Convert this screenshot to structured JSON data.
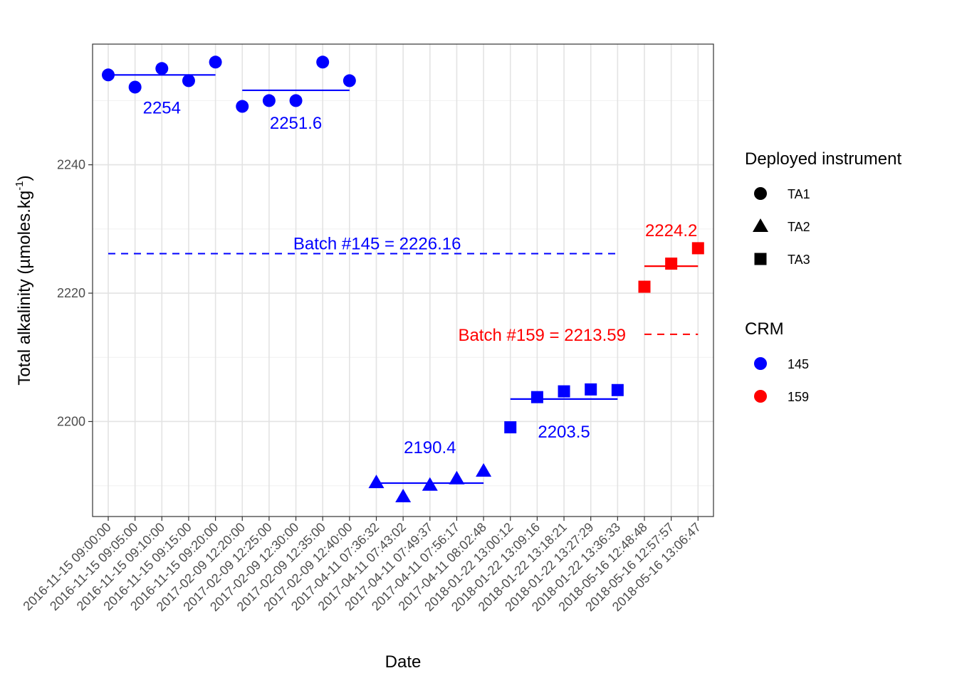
{
  "chart_data": {
    "type": "scatter",
    "xlabel": "Date",
    "ylabel": "Total alkalinity (µmoles.kg",
    "ylabel_superscript": "-1",
    "ylabel_close": ")",
    "ylim": [
      2185.2,
      2258.8
    ],
    "yticks": [
      2200,
      2220,
      2240
    ],
    "grid": true,
    "categories": [
      "2016-11-15 09:00:00",
      "2016-11-15 09:05:00",
      "2016-11-15 09:10:00",
      "2016-11-15 09:15:00",
      "2016-11-15 09:20:00",
      "2017-02-09 12:20:00",
      "2017-02-09 12:25:00",
      "2017-02-09 12:30:00",
      "2017-02-09 12:35:00",
      "2017-02-09 12:40:00",
      "2017-04-11 07:36:32",
      "2017-04-11 07:43:02",
      "2017-04-11 07:49:37",
      "2017-04-11 07:56:17",
      "2017-04-11 08:02:48",
      "2018-01-22 13:00:12",
      "2018-01-22 13:09:16",
      "2018-01-22 13:18:21",
      "2018-01-22 13:27:29",
      "2018-01-22 13:36:33",
      "2018-05-16 12:48:48",
      "2018-05-16 12:57:57",
      "2018-05-16 13:06:47"
    ],
    "points": [
      {
        "x": "2016-11-15 09:00:00",
        "y": 2254.0,
        "instrument": "TA1",
        "crm": "145"
      },
      {
        "x": "2016-11-15 09:05:00",
        "y": 2252.1,
        "instrument": "TA1",
        "crm": "145"
      },
      {
        "x": "2016-11-15 09:10:00",
        "y": 2255.0,
        "instrument": "TA1",
        "crm": "145"
      },
      {
        "x": "2016-11-15 09:15:00",
        "y": 2253.1,
        "instrument": "TA1",
        "crm": "145"
      },
      {
        "x": "2016-11-15 09:20:00",
        "y": 2256.0,
        "instrument": "TA1",
        "crm": "145"
      },
      {
        "x": "2017-02-09 12:20:00",
        "y": 2249.1,
        "instrument": "TA1",
        "crm": "145"
      },
      {
        "x": "2017-02-09 12:25:00",
        "y": 2250.0,
        "instrument": "TA1",
        "crm": "145"
      },
      {
        "x": "2017-02-09 12:30:00",
        "y": 2250.0,
        "instrument": "TA1",
        "crm": "145"
      },
      {
        "x": "2017-02-09 12:35:00",
        "y": 2256.0,
        "instrument": "TA1",
        "crm": "145"
      },
      {
        "x": "2017-02-09 12:40:00",
        "y": 2253.1,
        "instrument": "TA1",
        "crm": "145"
      },
      {
        "x": "2017-04-11 07:36:32",
        "y": 2190.5,
        "instrument": "TA2",
        "crm": "145"
      },
      {
        "x": "2017-04-11 07:43:02",
        "y": 2188.3,
        "instrument": "TA2",
        "crm": "145"
      },
      {
        "x": "2017-04-11 07:49:37",
        "y": 2190.1,
        "instrument": "TA2",
        "crm": "145"
      },
      {
        "x": "2017-04-11 07:56:17",
        "y": 2191.1,
        "instrument": "TA2",
        "crm": "145"
      },
      {
        "x": "2017-04-11 08:02:48",
        "y": 2192.3,
        "instrument": "TA2",
        "crm": "145"
      },
      {
        "x": "2018-01-22 13:00:12",
        "y": 2199.1,
        "instrument": "TA3",
        "crm": "145"
      },
      {
        "x": "2018-01-22 13:09:16",
        "y": 2203.8,
        "instrument": "TA3",
        "crm": "145"
      },
      {
        "x": "2018-01-22 13:18:21",
        "y": 2204.7,
        "instrument": "TA3",
        "crm": "145"
      },
      {
        "x": "2018-01-22 13:27:29",
        "y": 2205.0,
        "instrument": "TA3",
        "crm": "145"
      },
      {
        "x": "2018-01-22 13:36:33",
        "y": 2204.9,
        "instrument": "TA3",
        "crm": "145"
      },
      {
        "x": "2018-05-16 12:48:48",
        "y": 2221.0,
        "instrument": "TA3",
        "crm": "159"
      },
      {
        "x": "2018-05-16 12:57:57",
        "y": 2224.6,
        "instrument": "TA3",
        "crm": "159"
      },
      {
        "x": "2018-05-16 13:06:47",
        "y": 2227.0,
        "instrument": "TA3",
        "crm": "159"
      }
    ],
    "group_means": [
      {
        "from": "2016-11-15 09:00:00",
        "to": "2016-11-15 09:20:00",
        "y": 2254.0,
        "label": "2254",
        "crm": "145",
        "label_pos": "below"
      },
      {
        "from": "2017-02-09 12:20:00",
        "to": "2017-02-09 12:40:00",
        "y": 2251.6,
        "label": "2251.6",
        "crm": "145",
        "label_pos": "below"
      },
      {
        "from": "2017-04-11 07:36:32",
        "to": "2017-04-11 08:02:48",
        "y": 2190.4,
        "label": "2190.4",
        "crm": "145",
        "label_pos": "above"
      },
      {
        "from": "2018-01-22 13:00:12",
        "to": "2018-01-22 13:36:33",
        "y": 2203.5,
        "label": "2203.5",
        "crm": "145",
        "label_pos": "below"
      },
      {
        "from": "2018-05-16 12:48:48",
        "to": "2018-05-16 13:06:47",
        "y": 2224.2,
        "label": "2224.2",
        "crm": "159",
        "label_pos": "above"
      }
    ],
    "reference_lines": [
      {
        "from": "2016-11-15 09:00:00",
        "to": "2018-01-22 13:36:33",
        "y": 2226.16,
        "label": "Batch #145 = 2226.16",
        "crm": "145"
      },
      {
        "from": "2018-05-16 12:48:48",
        "to": "2018-05-16 13:06:47",
        "y": 2213.59,
        "label": "Batch #159 = 2213.59",
        "crm": "159"
      }
    ],
    "legend": {
      "placement": "right",
      "shape_title": "Deployed instrument",
      "shape_entries": [
        {
          "label": "TA1",
          "shape": "circle"
        },
        {
          "label": "TA2",
          "shape": "triangle"
        },
        {
          "label": "TA3",
          "shape": "square"
        }
      ],
      "color_title": "CRM",
      "color_entries": [
        {
          "label": "145",
          "color": "#0000ff"
        },
        {
          "label": "159",
          "color": "#ff0000"
        }
      ]
    },
    "colors": {
      "145": "#0000ff",
      "159": "#ff0000"
    }
  }
}
